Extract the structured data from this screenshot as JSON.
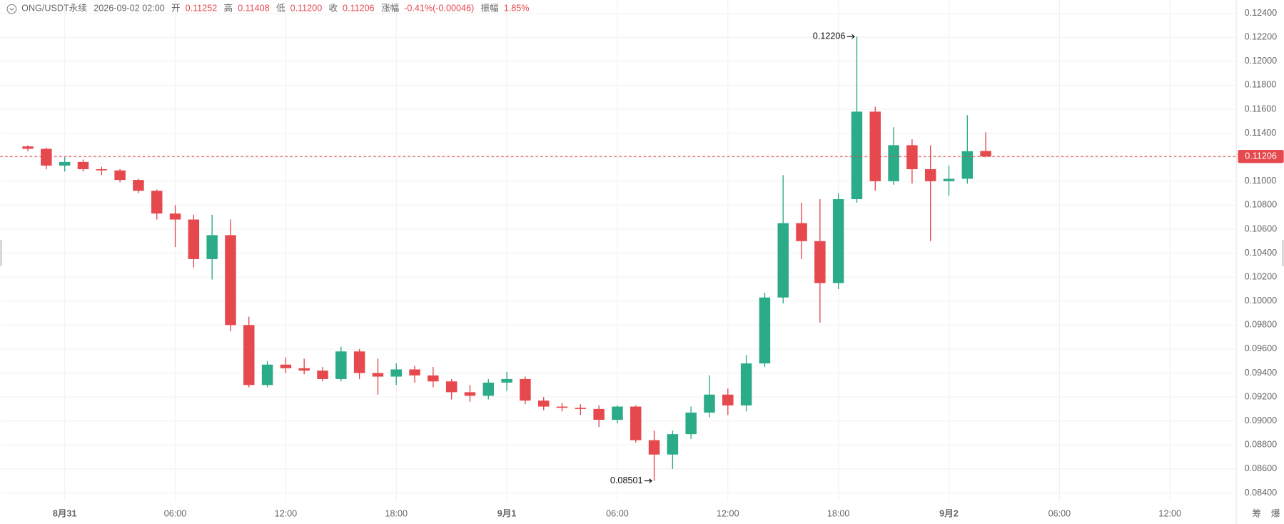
{
  "header": {
    "symbol": "ONG/USDT永续",
    "datetime": "2026-09-02 02:00",
    "open_label": "开",
    "open": "0.11252",
    "high_label": "高",
    "high": "0.11408",
    "low_label": "低",
    "low": "0.11200",
    "close_label": "收",
    "close": "0.11206",
    "change_label": "涨幅",
    "change": "-0.41%(-0.00046)",
    "amplitude_label": "振幅",
    "amplitude": "1.85%"
  },
  "side_icons": [
    "筹",
    "爆"
  ],
  "chart_data": {
    "type": "candlestick",
    "x": [
      0,
      1,
      2,
      3,
      4,
      5,
      6,
      7,
      8,
      9,
      10,
      11,
      12,
      13,
      14,
      15,
      16,
      17,
      18,
      19,
      20,
      21,
      22,
      23,
      24,
      25,
      26,
      27,
      28,
      29,
      30,
      31,
      32,
      33,
      34,
      35,
      36,
      37,
      38,
      39,
      40,
      41,
      42,
      43,
      44,
      45,
      46,
      47,
      48,
      49,
      50,
      51,
      52
    ],
    "open": [
      0.1129,
      0.1127,
      0.1113,
      0.1116,
      0.111,
      0.1109,
      0.1101,
      0.1092,
      0.1073,
      0.1068,
      0.1035,
      0.1055,
      0.098,
      0.093,
      0.0947,
      0.0944,
      0.0942,
      0.0935,
      0.0958,
      0.094,
      0.0937,
      0.0943,
      0.0938,
      0.0933,
      0.0924,
      0.0921,
      0.0932,
      0.0935,
      0.0917,
      0.0912,
      0.0911,
      0.091,
      0.0901,
      0.0912,
      0.0884,
      0.0872,
      0.0889,
      0.0907,
      0.0922,
      0.0913,
      0.0948,
      0.1003,
      0.1065,
      0.105,
      0.1015,
      0.1085,
      0.1158,
      0.11,
      0.113,
      0.111,
      0.11,
      0.1102,
      0.11252
    ],
    "high": [
      0.113,
      0.1128,
      0.112,
      0.1118,
      0.1112,
      0.111,
      0.1102,
      0.1093,
      0.108,
      0.1072,
      0.1072,
      0.1068,
      0.0987,
      0.095,
      0.0953,
      0.0952,
      0.0945,
      0.0962,
      0.096,
      0.0952,
      0.0948,
      0.0946,
      0.0945,
      0.0935,
      0.093,
      0.0935,
      0.0941,
      0.0937,
      0.092,
      0.0915,
      0.0914,
      0.0913,
      0.0913,
      0.0913,
      0.0892,
      0.0892,
      0.0912,
      0.0938,
      0.0927,
      0.0955,
      0.1007,
      0.1105,
      0.1082,
      0.1085,
      0.109,
      0.12206,
      0.1162,
      0.1145,
      0.1135,
      0.113,
      0.1113,
      0.1155,
      0.11408
    ],
    "low": [
      0.1125,
      0.111,
      0.1108,
      0.1108,
      0.1105,
      0.1099,
      0.109,
      0.1068,
      0.1045,
      0.1028,
      0.1018,
      0.0975,
      0.0928,
      0.0928,
      0.094,
      0.0939,
      0.0933,
      0.0933,
      0.0935,
      0.0922,
      0.093,
      0.0932,
      0.0928,
      0.0918,
      0.0916,
      0.0918,
      0.0925,
      0.0914,
      0.0909,
      0.0908,
      0.0905,
      0.0895,
      0.0898,
      0.0882,
      0.08501,
      0.086,
      0.0885,
      0.0903,
      0.0905,
      0.0908,
      0.0945,
      0.0998,
      0.1035,
      0.0982,
      0.101,
      0.1082,
      0.1092,
      0.1097,
      0.1098,
      0.105,
      0.1088,
      0.1098,
      0.112
    ],
    "close": [
      0.1127,
      0.1113,
      0.1116,
      0.111,
      0.1109,
      0.1101,
      0.1092,
      0.1073,
      0.1068,
      0.1035,
      0.1055,
      0.098,
      0.093,
      0.0947,
      0.0944,
      0.0942,
      0.0935,
      0.0958,
      0.094,
      0.0937,
      0.0943,
      0.0938,
      0.0933,
      0.0924,
      0.0921,
      0.0932,
      0.0935,
      0.0917,
      0.0912,
      0.0911,
      0.091,
      0.0901,
      0.0912,
      0.0884,
      0.0872,
      0.0889,
      0.0907,
      0.0922,
      0.0913,
      0.0948,
      0.1003,
      0.1065,
      0.105,
      0.1015,
      0.1085,
      0.1158,
      0.11,
      0.113,
      0.111,
      0.11,
      0.1102,
      0.1125,
      0.11206
    ],
    "up_color": "#2bab87",
    "down_color": "#e5494d",
    "xlim": [
      -1.5,
      65.6
    ],
    "xticks": [
      {
        "value": 2,
        "label": "8月31"
      },
      {
        "value": 8,
        "label": "06:00"
      },
      {
        "value": 14,
        "label": "12:00"
      },
      {
        "value": 20,
        "label": "18:00"
      },
      {
        "value": 26,
        "label": "9月1"
      },
      {
        "value": 32,
        "label": "06:00"
      },
      {
        "value": 38,
        "label": "12:00"
      },
      {
        "value": 44,
        "label": "18:00"
      },
      {
        "value": 50,
        "label": "9月2"
      },
      {
        "value": 56,
        "label": "06:00"
      },
      {
        "value": 62,
        "label": "12:00"
      }
    ],
    "ylim": [
      0.08332,
      0.12511
    ],
    "yticks": [
      {
        "value": 0.084,
        "label": "0.08400"
      },
      {
        "value": 0.086,
        "label": "0.08600"
      },
      {
        "value": 0.088,
        "label": "0.08800"
      },
      {
        "value": 0.09,
        "label": "0.09000"
      },
      {
        "value": 0.092,
        "label": "0.09200"
      },
      {
        "value": 0.094,
        "label": "0.09400"
      },
      {
        "value": 0.096,
        "label": "0.09600"
      },
      {
        "value": 0.098,
        "label": "0.09800"
      },
      {
        "value": 0.1,
        "label": "0.10000"
      },
      {
        "value": 0.102,
        "label": "0.10200"
      },
      {
        "value": 0.104,
        "label": "0.10400"
      },
      {
        "value": 0.106,
        "label": "0.10600"
      },
      {
        "value": 0.108,
        "label": "0.10800"
      },
      {
        "value": 0.11,
        "label": "0.11000"
      },
      {
        "value": 0.112,
        "label": "0.11200"
      },
      {
        "value": 0.114,
        "label": "0.11400"
      },
      {
        "value": 0.116,
        "label": "0.11600"
      },
      {
        "value": 0.118,
        "label": "0.11800"
      },
      {
        "value": 0.12,
        "label": "0.12000"
      },
      {
        "value": 0.122,
        "label": "0.12200"
      },
      {
        "value": 0.124,
        "label": "0.12400"
      }
    ],
    "grid": true,
    "last_price": 0.11206,
    "high_marker": 0.12206,
    "high_marker_x": 45,
    "low_marker": 0.08501,
    "low_marker_x": 34
  }
}
